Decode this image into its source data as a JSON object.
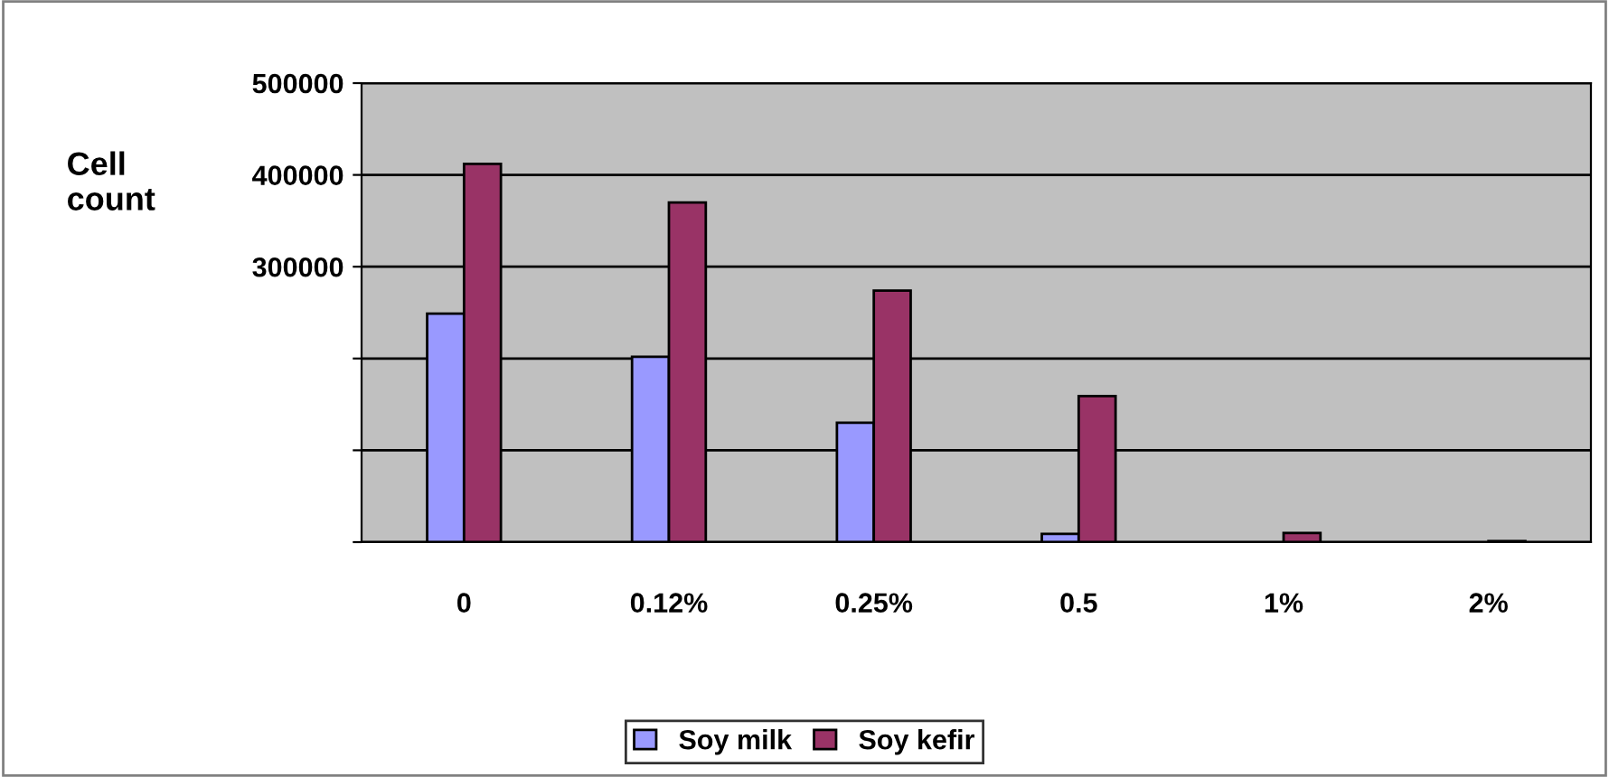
{
  "chart_data": {
    "type": "bar",
    "ylabel": "Cell\ncount",
    "categories": [
      "0",
      "0.12%",
      "0.25%",
      "0.5",
      "1%",
      "2%"
    ],
    "series": [
      {
        "name": "Soy milk",
        "color": "#9999ff",
        "values": [
          249000,
          202000,
          130000,
          9000,
          null,
          null
        ]
      },
      {
        "name": "Soy kefir",
        "color": "#993366",
        "values": [
          412000,
          370000,
          274000,
          159000,
          10000,
          1000
        ]
      }
    ],
    "ylim": [
      0,
      500000
    ],
    "yticks": [
      {
        "value": 0,
        "label": null
      },
      {
        "value": 100000,
        "label": null
      },
      {
        "value": 200000,
        "label": null
      },
      300000,
      400000,
      500000
    ],
    "grid": "y",
    "legend": "bottom"
  }
}
